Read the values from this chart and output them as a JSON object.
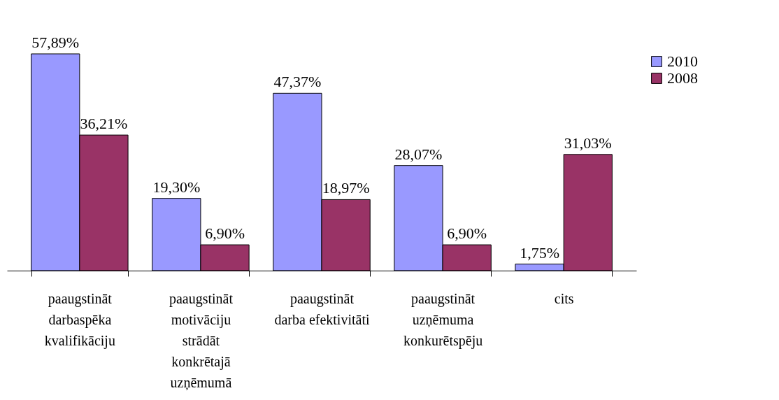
{
  "chart_data": {
    "type": "bar",
    "categories": [
      "paaugstināt\ndarbaspēka\nkvalifikāciju",
      "paaugstināt\nmotivāciju\nstrādāt\nkonkrētajā\nuzņēmumā",
      "paaugstināt\ndarba efektivitāti",
      "paaugstināt\nuzņēmuma\nkonkurētspēju",
      "cits"
    ],
    "series": [
      {
        "name": "2010",
        "color": "#9999ff",
        "values": [
          57.89,
          19.3,
          47.37,
          28.07,
          1.75
        ],
        "value_labels": [
          "57,89%",
          "19,30%",
          "47,37%",
          "28,07%",
          "1,75%"
        ]
      },
      {
        "name": "2008",
        "color": "#993366",
        "values": [
          36.21,
          6.9,
          18.97,
          6.9,
          31.03
        ],
        "value_labels": [
          "36,21%",
          "6,90%",
          "18,97%",
          "6,90%",
          "31,03%"
        ]
      }
    ],
    "legend": "right",
    "grid": false
  }
}
